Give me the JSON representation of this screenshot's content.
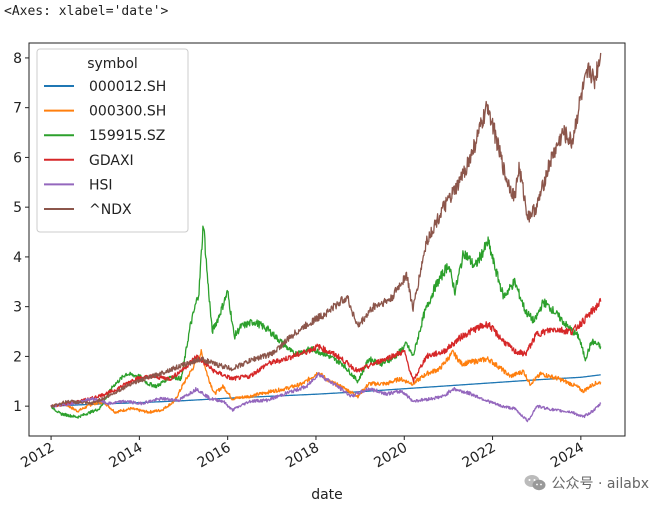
{
  "output_repr": "<Axes: xlabel='date'>",
  "watermark": "公众号 · ailabx",
  "chart_data": {
    "type": "line",
    "xlabel": "date",
    "ylabel": "",
    "xlim": [
      2011.5,
      2025.0
    ],
    "ylim": [
      0.4,
      8.3
    ],
    "x_ticks": [
      2012,
      2014,
      2016,
      2018,
      2020,
      2022,
      2024
    ],
    "x_tick_labels": [
      "2012",
      "2014",
      "2016",
      "2018",
      "2020",
      "2022",
      "2024"
    ],
    "y_ticks": [
      1,
      2,
      3,
      4,
      5,
      6,
      7,
      8
    ],
    "y_tick_labels": [
      "1",
      "2",
      "3",
      "4",
      "5",
      "6",
      "7",
      "8"
    ],
    "grid": false,
    "legend_title": "symbol",
    "legend_position": "upper-left",
    "series": [
      {
        "name": "000012.SH",
        "color": "#1f77b4",
        "points": [
          [
            2012.0,
            1.0
          ],
          [
            2013.0,
            1.04
          ],
          [
            2014.0,
            1.07
          ],
          [
            2015.0,
            1.11
          ],
          [
            2016.0,
            1.16
          ],
          [
            2017.0,
            1.2
          ],
          [
            2018.0,
            1.24
          ],
          [
            2019.0,
            1.29
          ],
          [
            2020.0,
            1.35
          ],
          [
            2021.0,
            1.41
          ],
          [
            2022.0,
            1.47
          ],
          [
            2023.0,
            1.53
          ],
          [
            2024.0,
            1.58
          ],
          [
            2024.45,
            1.63
          ]
        ]
      },
      {
        "name": "000300.SH",
        "color": "#ff7f0e",
        "points": [
          [
            2012.0,
            1.0
          ],
          [
            2012.3,
            1.05
          ],
          [
            2012.6,
            0.9
          ],
          [
            2012.95,
            1.05
          ],
          [
            2013.2,
            1.08
          ],
          [
            2013.45,
            0.88
          ],
          [
            2013.8,
            0.95
          ],
          [
            2014.2,
            0.88
          ],
          [
            2014.5,
            0.92
          ],
          [
            2014.8,
            1.1
          ],
          [
            2015.0,
            1.45
          ],
          [
            2015.2,
            1.75
          ],
          [
            2015.4,
            2.08
          ],
          [
            2015.55,
            1.6
          ],
          [
            2015.7,
            1.25
          ],
          [
            2015.9,
            1.4
          ],
          [
            2016.1,
            1.15
          ],
          [
            2016.5,
            1.2
          ],
          [
            2016.9,
            1.28
          ],
          [
            2017.3,
            1.35
          ],
          [
            2017.7,
            1.45
          ],
          [
            2018.05,
            1.68
          ],
          [
            2018.3,
            1.5
          ],
          [
            2018.6,
            1.38
          ],
          [
            2018.95,
            1.2
          ],
          [
            2019.2,
            1.45
          ],
          [
            2019.6,
            1.45
          ],
          [
            2019.9,
            1.55
          ],
          [
            2020.2,
            1.45
          ],
          [
            2020.5,
            1.65
          ],
          [
            2020.8,
            1.75
          ],
          [
            2021.1,
            2.08
          ],
          [
            2021.3,
            1.85
          ],
          [
            2021.6,
            1.9
          ],
          [
            2021.9,
            1.95
          ],
          [
            2022.2,
            1.75
          ],
          [
            2022.4,
            1.6
          ],
          [
            2022.7,
            1.7
          ],
          [
            2022.85,
            1.45
          ],
          [
            2023.1,
            1.65
          ],
          [
            2023.5,
            1.55
          ],
          [
            2023.9,
            1.4
          ],
          [
            2024.05,
            1.3
          ],
          [
            2024.3,
            1.45
          ],
          [
            2024.45,
            1.48
          ]
        ]
      },
      {
        "name": "159915.SZ",
        "color": "#2ca02c",
        "points": [
          [
            2012.0,
            1.0
          ],
          [
            2012.2,
            0.85
          ],
          [
            2012.6,
            0.78
          ],
          [
            2012.9,
            0.88
          ],
          [
            2013.1,
            0.95
          ],
          [
            2013.4,
            1.4
          ],
          [
            2013.7,
            1.65
          ],
          [
            2014.0,
            1.6
          ],
          [
            2014.2,
            1.45
          ],
          [
            2014.4,
            1.4
          ],
          [
            2014.7,
            1.6
          ],
          [
            2014.95,
            1.55
          ],
          [
            2015.15,
            2.6
          ],
          [
            2015.35,
            3.3
          ],
          [
            2015.45,
            4.7
          ],
          [
            2015.55,
            3.5
          ],
          [
            2015.65,
            2.5
          ],
          [
            2015.8,
            2.8
          ],
          [
            2016.0,
            3.3
          ],
          [
            2016.15,
            2.4
          ],
          [
            2016.3,
            2.6
          ],
          [
            2016.6,
            2.7
          ],
          [
            2016.9,
            2.55
          ],
          [
            2017.2,
            2.3
          ],
          [
            2017.5,
            2.05
          ],
          [
            2017.9,
            2.15
          ],
          [
            2018.2,
            2.05
          ],
          [
            2018.6,
            1.85
          ],
          [
            2018.95,
            1.5
          ],
          [
            2019.2,
            1.95
          ],
          [
            2019.5,
            1.85
          ],
          [
            2019.8,
            2.0
          ],
          [
            2020.05,
            2.25
          ],
          [
            2020.2,
            2.0
          ],
          [
            2020.45,
            2.85
          ],
          [
            2020.7,
            3.4
          ],
          [
            2021.0,
            3.85
          ],
          [
            2021.15,
            3.3
          ],
          [
            2021.35,
            4.1
          ],
          [
            2021.6,
            3.8
          ],
          [
            2021.9,
            4.3
          ],
          [
            2022.05,
            3.8
          ],
          [
            2022.25,
            3.2
          ],
          [
            2022.5,
            3.5
          ],
          [
            2022.75,
            2.9
          ],
          [
            2022.95,
            2.7
          ],
          [
            2023.15,
            3.1
          ],
          [
            2023.4,
            2.9
          ],
          [
            2023.7,
            2.6
          ],
          [
            2023.95,
            2.4
          ],
          [
            2024.1,
            1.95
          ],
          [
            2024.25,
            2.3
          ],
          [
            2024.45,
            2.2
          ]
        ]
      },
      {
        "name": "GDAXI",
        "color": "#d62728",
        "points": [
          [
            2012.0,
            1.0
          ],
          [
            2012.4,
            1.05
          ],
          [
            2012.9,
            1.15
          ],
          [
            2013.4,
            1.3
          ],
          [
            2013.9,
            1.55
          ],
          [
            2014.3,
            1.6
          ],
          [
            2014.7,
            1.55
          ],
          [
            2015.0,
            1.75
          ],
          [
            2015.3,
            2.0
          ],
          [
            2015.7,
            1.7
          ],
          [
            2016.1,
            1.55
          ],
          [
            2016.5,
            1.6
          ],
          [
            2016.9,
            1.85
          ],
          [
            2017.3,
            1.95
          ],
          [
            2017.8,
            2.1
          ],
          [
            2018.05,
            2.2
          ],
          [
            2018.5,
            2.0
          ],
          [
            2018.95,
            1.7
          ],
          [
            2019.3,
            1.85
          ],
          [
            2019.7,
            2.0
          ],
          [
            2020.0,
            2.1
          ],
          [
            2020.2,
            1.5
          ],
          [
            2020.5,
            2.0
          ],
          [
            2020.9,
            2.1
          ],
          [
            2021.3,
            2.4
          ],
          [
            2021.6,
            2.55
          ],
          [
            2021.9,
            2.65
          ],
          [
            2022.2,
            2.35
          ],
          [
            2022.5,
            2.1
          ],
          [
            2022.75,
            2.05
          ],
          [
            2023.0,
            2.45
          ],
          [
            2023.4,
            2.55
          ],
          [
            2023.8,
            2.5
          ],
          [
            2024.1,
            2.75
          ],
          [
            2024.45,
            3.1
          ]
        ]
      },
      {
        "name": "HSI",
        "color": "#9467bd",
        "points": [
          [
            2012.0,
            1.0
          ],
          [
            2012.5,
            1.05
          ],
          [
            2012.95,
            1.15
          ],
          [
            2013.3,
            1.05
          ],
          [
            2013.7,
            1.1
          ],
          [
            2014.0,
            1.05
          ],
          [
            2014.5,
            1.15
          ],
          [
            2014.9,
            1.12
          ],
          [
            2015.3,
            1.35
          ],
          [
            2015.6,
            1.15
          ],
          [
            2015.9,
            1.1
          ],
          [
            2016.1,
            0.92
          ],
          [
            2016.5,
            1.1
          ],
          [
            2016.9,
            1.12
          ],
          [
            2017.3,
            1.25
          ],
          [
            2017.8,
            1.4
          ],
          [
            2018.05,
            1.65
          ],
          [
            2018.4,
            1.45
          ],
          [
            2018.8,
            1.2
          ],
          [
            2019.2,
            1.35
          ],
          [
            2019.6,
            1.25
          ],
          [
            2019.95,
            1.3
          ],
          [
            2020.2,
            1.1
          ],
          [
            2020.6,
            1.15
          ],
          [
            2020.9,
            1.2
          ],
          [
            2021.1,
            1.35
          ],
          [
            2021.5,
            1.25
          ],
          [
            2021.9,
            1.1
          ],
          [
            2022.2,
            1.0
          ],
          [
            2022.5,
            0.95
          ],
          [
            2022.8,
            0.7
          ],
          [
            2023.0,
            1.0
          ],
          [
            2023.4,
            0.92
          ],
          [
            2023.8,
            0.88
          ],
          [
            2024.05,
            0.78
          ],
          [
            2024.3,
            0.92
          ],
          [
            2024.45,
            1.05
          ]
        ]
      },
      {
        "name": "^NDX",
        "color": "#8c564b",
        "points": [
          [
            2012.0,
            1.0
          ],
          [
            2012.4,
            1.1
          ],
          [
            2012.9,
            1.05
          ],
          [
            2013.3,
            1.2
          ],
          [
            2013.8,
            1.45
          ],
          [
            2014.3,
            1.6
          ],
          [
            2014.9,
            1.8
          ],
          [
            2015.4,
            1.95
          ],
          [
            2015.7,
            1.85
          ],
          [
            2016.1,
            1.75
          ],
          [
            2016.6,
            1.95
          ],
          [
            2017.0,
            2.05
          ],
          [
            2017.5,
            2.45
          ],
          [
            2017.9,
            2.7
          ],
          [
            2018.2,
            2.85
          ],
          [
            2018.7,
            3.2
          ],
          [
            2018.95,
            2.6
          ],
          [
            2019.3,
            3.0
          ],
          [
            2019.7,
            3.15
          ],
          [
            2020.05,
            3.65
          ],
          [
            2020.2,
            2.95
          ],
          [
            2020.5,
            4.3
          ],
          [
            2020.9,
            5.0
          ],
          [
            2021.2,
            5.4
          ],
          [
            2021.5,
            6.0
          ],
          [
            2021.9,
            7.05
          ],
          [
            2022.1,
            6.3
          ],
          [
            2022.3,
            5.6
          ],
          [
            2022.5,
            5.2
          ],
          [
            2022.6,
            5.8
          ],
          [
            2022.8,
            4.8
          ],
          [
            2023.0,
            5.0
          ],
          [
            2023.3,
            5.9
          ],
          [
            2023.6,
            6.5
          ],
          [
            2023.8,
            6.3
          ],
          [
            2024.0,
            7.2
          ],
          [
            2024.2,
            7.8
          ],
          [
            2024.3,
            7.5
          ],
          [
            2024.45,
            8.1
          ]
        ]
      }
    ]
  }
}
